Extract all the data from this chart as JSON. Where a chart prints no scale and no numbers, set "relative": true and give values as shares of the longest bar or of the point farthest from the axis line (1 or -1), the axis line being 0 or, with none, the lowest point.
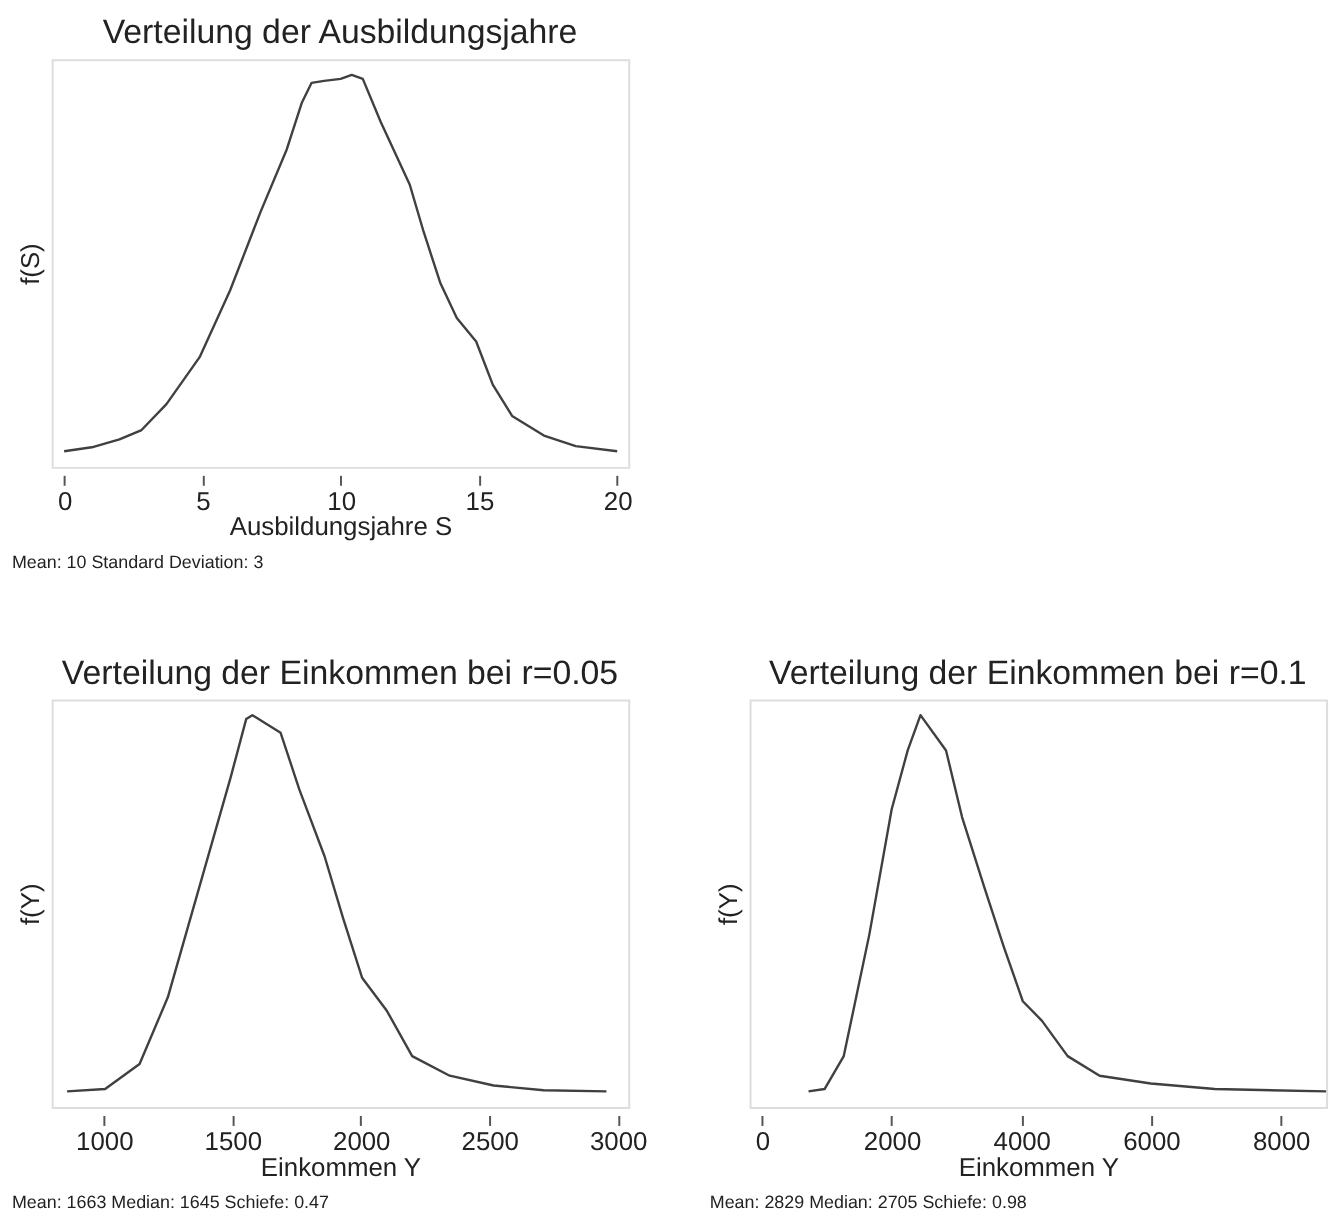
{
  "chart_data": [
    {
      "type": "line",
      "title": "Verteilung der Ausbildungsjahre",
      "xlabel": "Ausbildungsjahre S",
      "ylabel": "f(S)",
      "relative": true,
      "color": "#404040",
      "xlim": [
        -0.45,
        20.4
      ],
      "xticks": [
        0,
        5,
        10,
        15,
        20
      ],
      "annotations": [
        "Mean: 10    Standard Deviation: 3"
      ],
      "x": [
        0,
        1.0,
        2.0,
        2.8,
        3.7,
        4.9,
        6.0,
        7.1,
        8.05,
        8.6,
        8.95,
        9.4,
        10.0,
        10.4,
        10.8,
        11.45,
        12.5,
        13.0,
        13.6,
        14.2,
        14.9,
        15.5,
        16.2,
        17.35,
        18.5,
        20
      ],
      "values": [
        0.04,
        0.05,
        0.07,
        0.094,
        0.16,
        0.28,
        0.45,
        0.65,
        0.81,
        0.93,
        0.98,
        0.985,
        0.99,
        1.0,
        0.99,
        0.88,
        0.72,
        0.6,
        0.47,
        0.38,
        0.32,
        0.21,
        0.13,
        0.08,
        0.053,
        0.04
      ]
    },
    {
      "type": "line",
      "title": "Verteilung der Einkommen bei r=0.05",
      "xlabel": "Einkommen Y",
      "ylabel": "f(Y)",
      "relative": true,
      "color": "#404040",
      "xlim": [
        797,
        3041
      ],
      "xticks": [
        1000,
        1500,
        2000,
        2500,
        3000
      ],
      "annotations": [
        "Mean: 1663    Median: 1645     Schiefe: 0.47"
      ],
      "x": [
        857,
        1005,
        1139,
        1249,
        1371,
        1493,
        1554,
        1578,
        1627,
        1688,
        1761,
        1859,
        1932,
        2005,
        2102,
        2200,
        2346,
        2517,
        2712,
        2956
      ],
      "values": [
        0.04,
        0.046,
        0.11,
        0.28,
        0.56,
        0.84,
        0.99,
        1.0,
        0.98,
        0.955,
        0.81,
        0.64,
        0.48,
        0.33,
        0.245,
        0.13,
        0.08,
        0.055,
        0.043,
        0.04
      ]
    },
    {
      "type": "line",
      "title": "Verteilung der Einkommen bei r=0.1",
      "xlabel": "Einkommen Y",
      "ylabel": "f(Y)",
      "relative": true,
      "color": "#404040",
      "xlim": [
        -190,
        8700
      ],
      "xticks": [
        0,
        2000,
        4000,
        6000,
        8000
      ],
      "annotations": [
        "Mean: 2829    Median: 2705     Schiefe: 0.98"
      ],
      "x": [
        720,
        967,
        1263,
        1657,
        2002,
        2249,
        2446,
        2840,
        3087,
        3432,
        3728,
        4024,
        4320,
        4715,
        5208,
        5997,
        6984,
        8700
      ],
      "values": [
        0.04,
        0.046,
        0.13,
        0.44,
        0.76,
        0.91,
        1.0,
        0.91,
        0.74,
        0.56,
        0.41,
        0.27,
        0.22,
        0.13,
        0.08,
        0.06,
        0.046,
        0.04
      ]
    }
  ]
}
